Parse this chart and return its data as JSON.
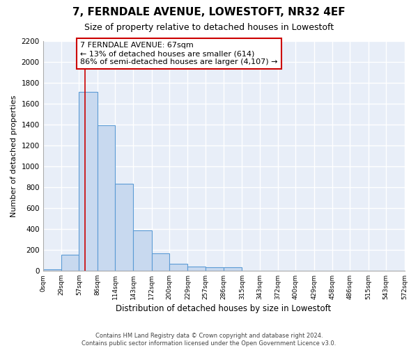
{
  "title": "7, FERNDALE AVENUE, LOWESTOFT, NR32 4EF",
  "subtitle": "Size of property relative to detached houses in Lowestoft",
  "xlabel": "Distribution of detached houses by size in Lowestoft",
  "ylabel": "Number of detached properties",
  "bar_color": "#c8d9ef",
  "bar_edge_color": "#5b9bd5",
  "background_color": "#e8eef8",
  "grid_color": "#ffffff",
  "fig_bg_color": "#ffffff",
  "bin_edges": [
    0,
    29,
    57,
    86,
    114,
    143,
    172,
    200,
    229,
    257,
    286,
    315,
    343,
    372,
    400,
    429,
    458,
    486,
    515,
    543,
    572
  ],
  "bar_heights": [
    15,
    155,
    1710,
    1390,
    835,
    385,
    165,
    65,
    40,
    30,
    30,
    0,
    0,
    0,
    0,
    0,
    0,
    0,
    0,
    0
  ],
  "property_size": 67,
  "vline_color": "#cc0000",
  "annotation_text": "7 FERNDALE AVENUE: 67sqm\n← 13% of detached houses are smaller (614)\n86% of semi-detached houses are larger (4,107) →",
  "annotation_box_color": "#ffffff",
  "annotation_box_edge": "#cc0000",
  "ylim": [
    0,
    2200
  ],
  "yticks": [
    0,
    200,
    400,
    600,
    800,
    1000,
    1200,
    1400,
    1600,
    1800,
    2000,
    2200
  ],
  "footer": "Contains HM Land Registry data © Crown copyright and database right 2024.\nContains public sector information licensed under the Open Government Licence v3.0.",
  "tick_labels": [
    "0sqm",
    "29sqm",
    "57sqm",
    "86sqm",
    "114sqm",
    "143sqm",
    "172sqm",
    "200sqm",
    "229sqm",
    "257sqm",
    "286sqm",
    "315sqm",
    "343sqm",
    "372sqm",
    "400sqm",
    "429sqm",
    "458sqm",
    "486sqm",
    "515sqm",
    "543sqm",
    "572sqm"
  ]
}
